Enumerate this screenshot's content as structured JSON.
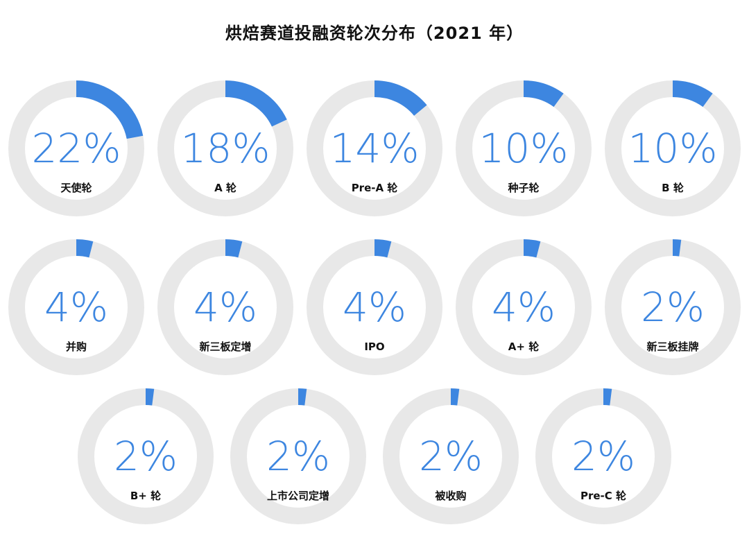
{
  "title": "烘焙赛道投融资轮次分布（2021 年）",
  "colors": {
    "accent": "#3d86e0",
    "track": "#e8e8e8",
    "label": "#111111"
  },
  "chart_data": {
    "type": "donut",
    "title": "烘焙赛道投融资轮次分布（2021 年）",
    "unit": "%",
    "categories": [
      "天使轮",
      "A 轮",
      "Pre-A 轮",
      "种子轮",
      "B 轮",
      "并购",
      "新三板定增",
      "IPO",
      "A+ 轮",
      "新三板挂牌",
      "B+ 轮",
      "上市公司定增",
      "被收购",
      "Pre-C 轮"
    ],
    "values": [
      22,
      18,
      14,
      10,
      10,
      4,
      4,
      4,
      4,
      2,
      2,
      2,
      2,
      2
    ],
    "display": [
      "22%",
      "18%",
      "14%",
      "10%",
      "10%",
      "4%",
      "4%",
      "4%",
      "4%",
      "2%",
      "2%",
      "2%",
      "2%",
      "2%"
    ]
  }
}
